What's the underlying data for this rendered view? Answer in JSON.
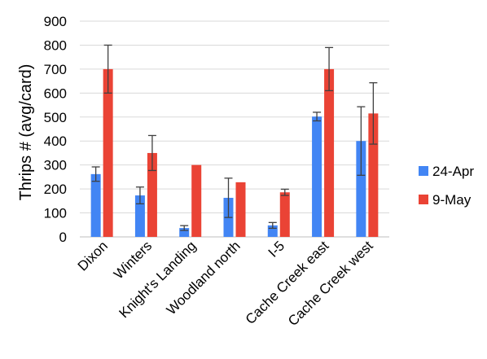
{
  "chart_data": {
    "type": "bar",
    "title": "",
    "xlabel": "",
    "ylabel": "Thrips # (avg/card)",
    "ylim": [
      0,
      900
    ],
    "yticks": [
      0,
      100,
      200,
      300,
      400,
      500,
      600,
      700,
      800,
      900
    ],
    "grid": true,
    "legend_position": "right",
    "categories": [
      "Dixon",
      "Winters",
      "Knight's Landing",
      "Woodland north",
      "I-5",
      "Cache Creek east",
      "Cache Creek west"
    ],
    "series": [
      {
        "name": "24-Apr",
        "color": "#4285f4",
        "values": [
          262,
          173,
          37,
          163,
          48,
          502,
          400
        ],
        "error": [
          30,
          35,
          10,
          82,
          12,
          18,
          143
        ]
      },
      {
        "name": "9-May",
        "color": "#ea4335",
        "values": [
          700,
          350,
          300,
          228,
          186,
          700,
          515
        ],
        "error": [
          100,
          73,
          0,
          0,
          13,
          90,
          128
        ]
      }
    ]
  }
}
